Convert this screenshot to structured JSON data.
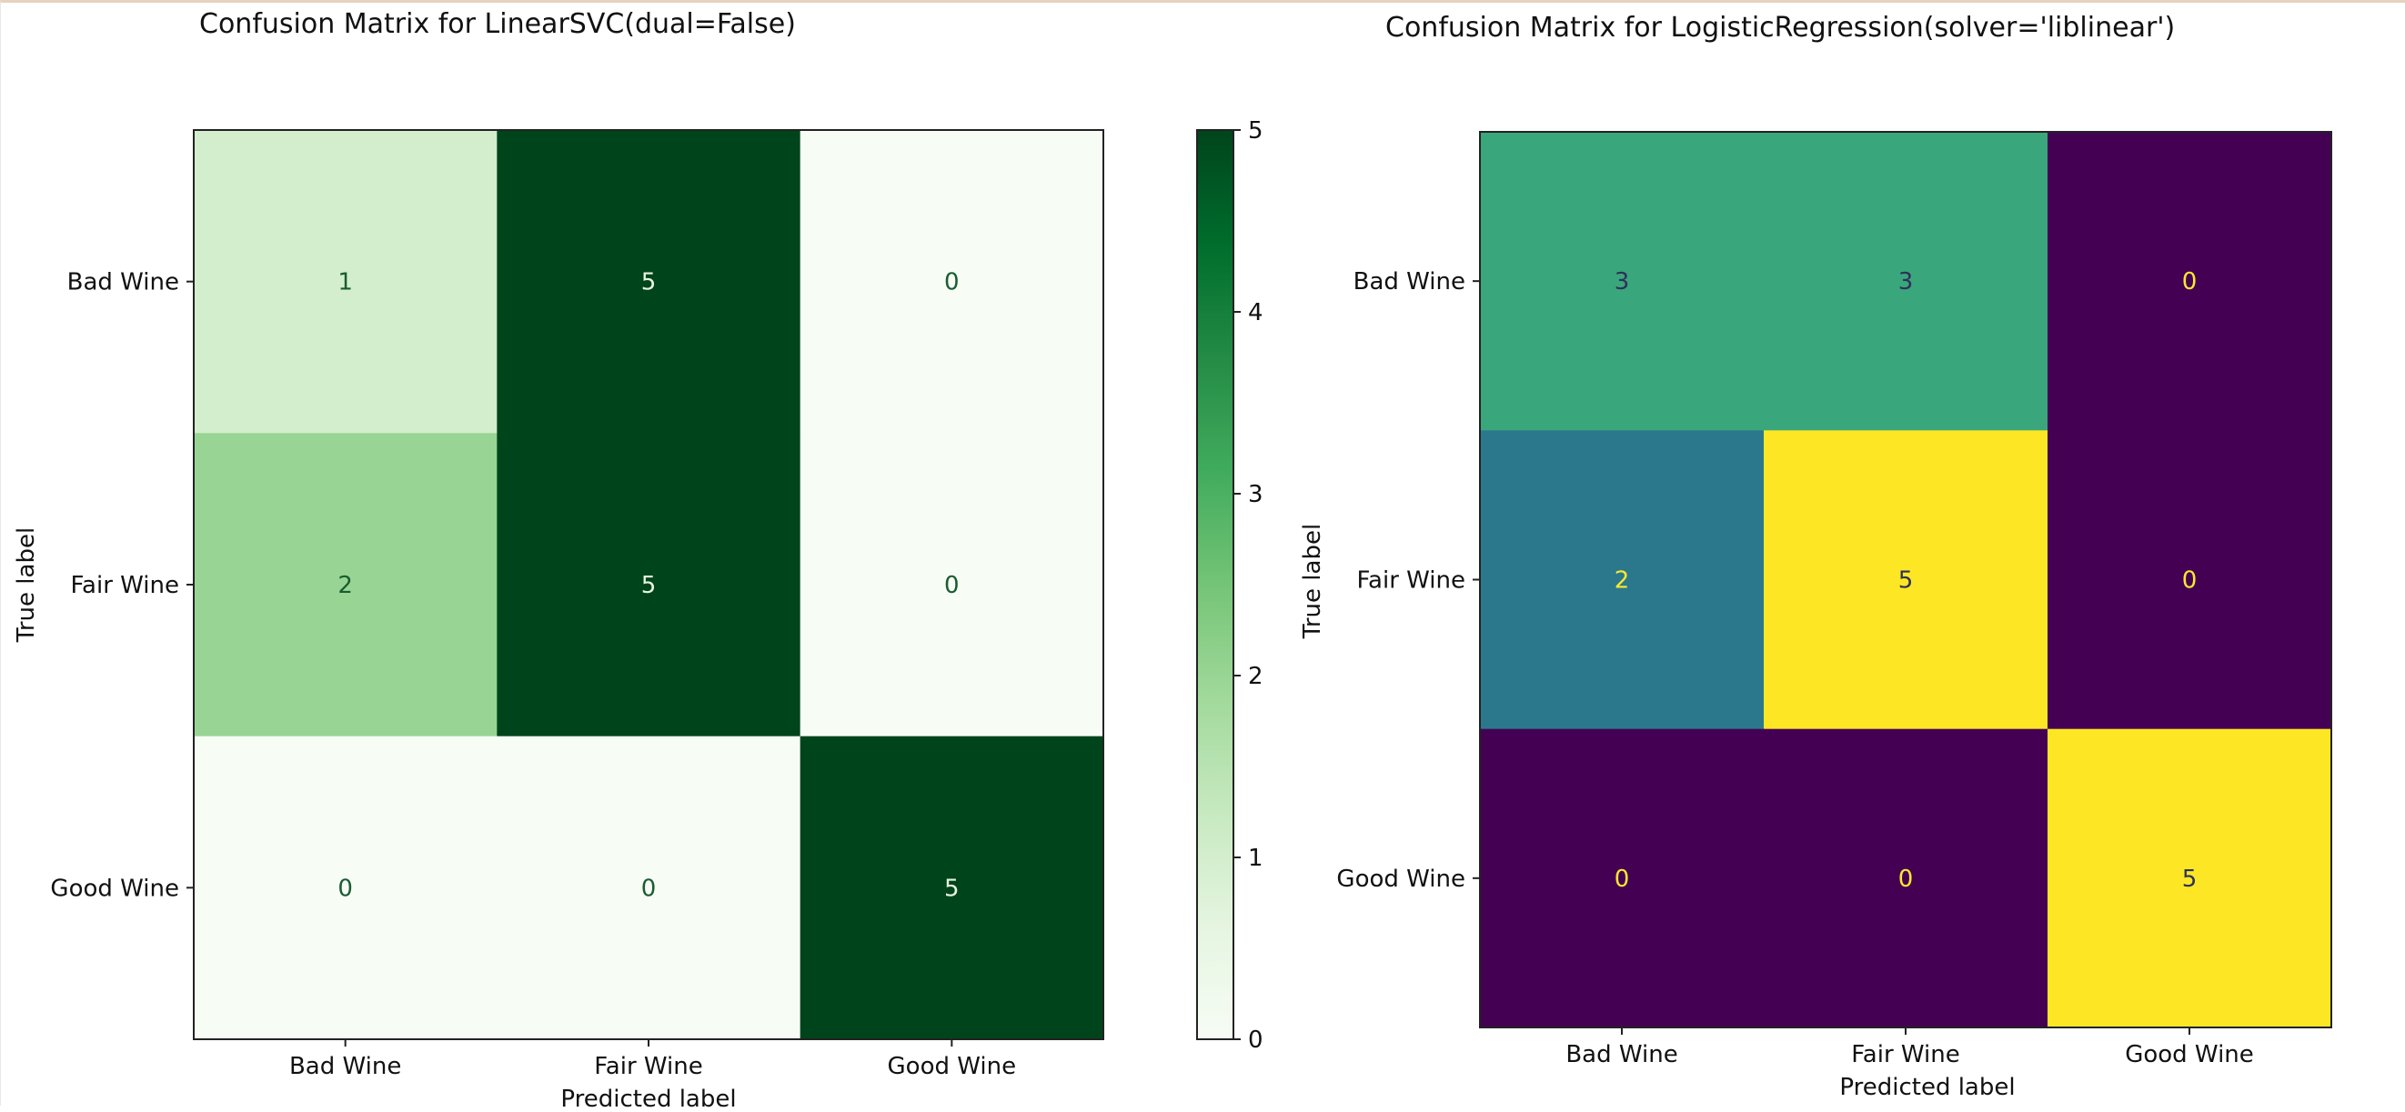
{
  "chart_data": [
    {
      "type": "heatmap",
      "title": "Confusion Matrix for  LinearSVC(dual=False)",
      "xlabel": "Predicted label",
      "ylabel": "True label",
      "x_categories": [
        "Bad Wine",
        "Fair Wine",
        "Good Wine"
      ],
      "y_categories": [
        "Bad Wine",
        "Fair Wine",
        "Good Wine"
      ],
      "values": [
        [
          1,
          5,
          0
        ],
        [
          2,
          5,
          0
        ],
        [
          0,
          0,
          5
        ]
      ],
      "colormap": "Greens",
      "colorbar": {
        "shown": true,
        "range": [
          0,
          5
        ],
        "ticks": [
          "0",
          "1",
          "2",
          "3",
          "4",
          "5"
        ]
      },
      "grid": false
    },
    {
      "type": "heatmap",
      "title": "Confusion Matrix for  LogisticRegression(solver='liblinear')",
      "xlabel": "Predicted label",
      "ylabel": "True label",
      "x_categories": [
        "Bad Wine",
        "Fair Wine",
        "Good Wine"
      ],
      "y_categories": [
        "Bad Wine",
        "Fair Wine",
        "Good Wine"
      ],
      "values": [
        [
          3,
          3,
          0
        ],
        [
          2,
          5,
          0
        ],
        [
          0,
          0,
          5
        ]
      ],
      "colormap": "viridis",
      "colorbar": {
        "shown": false
      },
      "grid": false
    }
  ],
  "colors": {
    "greens_low": "#f7fcf5",
    "greens_high": "#00441b",
    "viridis_low": "#440154",
    "viridis_high": "#fde725",
    "greens_text_dark": "#1a5c30",
    "greens_text_light": "#e5f5e0",
    "viridis_text_dark": "#30305a",
    "viridis_text_light": "#fbe830"
  }
}
